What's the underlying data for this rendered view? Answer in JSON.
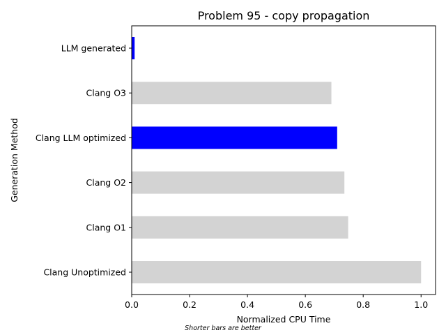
{
  "chart_data": {
    "type": "bar",
    "orientation": "horizontal",
    "title": "Problem 95 - copy propagation",
    "xlabel": "Normalized CPU Time",
    "ylabel": "Generation Method",
    "categories": [
      "Clang Unoptimized",
      "Clang O1",
      "Clang O2",
      "Clang LLM optimized",
      "Clang O3",
      "LLM generated"
    ],
    "values": [
      1.0,
      0.748,
      0.735,
      0.71,
      0.69,
      0.01
    ],
    "colors": [
      "#d3d3d3",
      "#d3d3d3",
      "#d3d3d3",
      "#0000ff",
      "#d3d3d3",
      "#0000ff"
    ],
    "xlim": [
      0,
      1.05
    ],
    "xticks": [
      "0.0",
      "0.2",
      "0.4",
      "0.6",
      "0.8",
      "1.0"
    ],
    "grid": false
  },
  "note": "Shorter bars are better"
}
